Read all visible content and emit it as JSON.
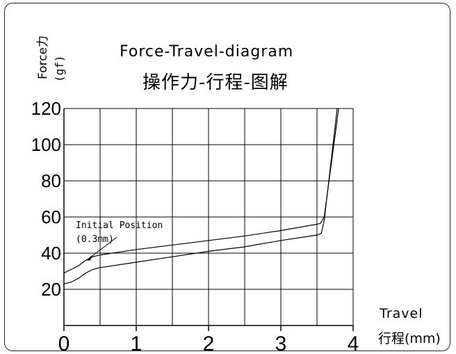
{
  "chart_data": {
    "type": "line",
    "title": "Force-Travel-diagram",
    "subtitle": "操作力-行程-图解",
    "ylabel": "Force力",
    "ylabel_unit": "(gf)",
    "xlabel": "Travel",
    "xlabel_zh": "行程(mm)",
    "xlim": [
      0,
      4
    ],
    "ylim": [
      0,
      120
    ],
    "x_ticks": [
      "0",
      "1",
      "2",
      "3",
      "4"
    ],
    "y_ticks": [
      "20",
      "40",
      "60",
      "80",
      "100",
      "120"
    ],
    "grid": true,
    "annotation": {
      "text_line1": "Initial Position",
      "text_line2": "(0.3mm)",
      "target": {
        "x": 0.3,
        "y": 36
      }
    },
    "series": [
      {
        "x": [
          0,
          0.1,
          0.2,
          0.3,
          0.4,
          0.5,
          1.0,
          1.5,
          2.0,
          2.5,
          3.0,
          3.5,
          3.55,
          3.6,
          3.8
        ],
        "y": [
          29,
          31,
          33,
          36,
          38,
          39,
          42,
          44.5,
          47,
          49.5,
          52.5,
          56,
          56.5,
          60,
          120
        ]
      },
      {
        "x": [
          0,
          0.1,
          0.2,
          0.3,
          0.4,
          0.5,
          1.0,
          1.5,
          2.0,
          2.5,
          3.0,
          3.5,
          3.56,
          3.6,
          3.78
        ],
        "y": [
          23,
          24,
          26,
          29,
          31,
          32,
          35,
          38,
          41,
          43.5,
          47,
          50,
          51,
          58,
          120
        ]
      }
    ],
    "colors": {
      "axis": "#000000",
      "grid": "#000000",
      "line": "#000000"
    }
  }
}
